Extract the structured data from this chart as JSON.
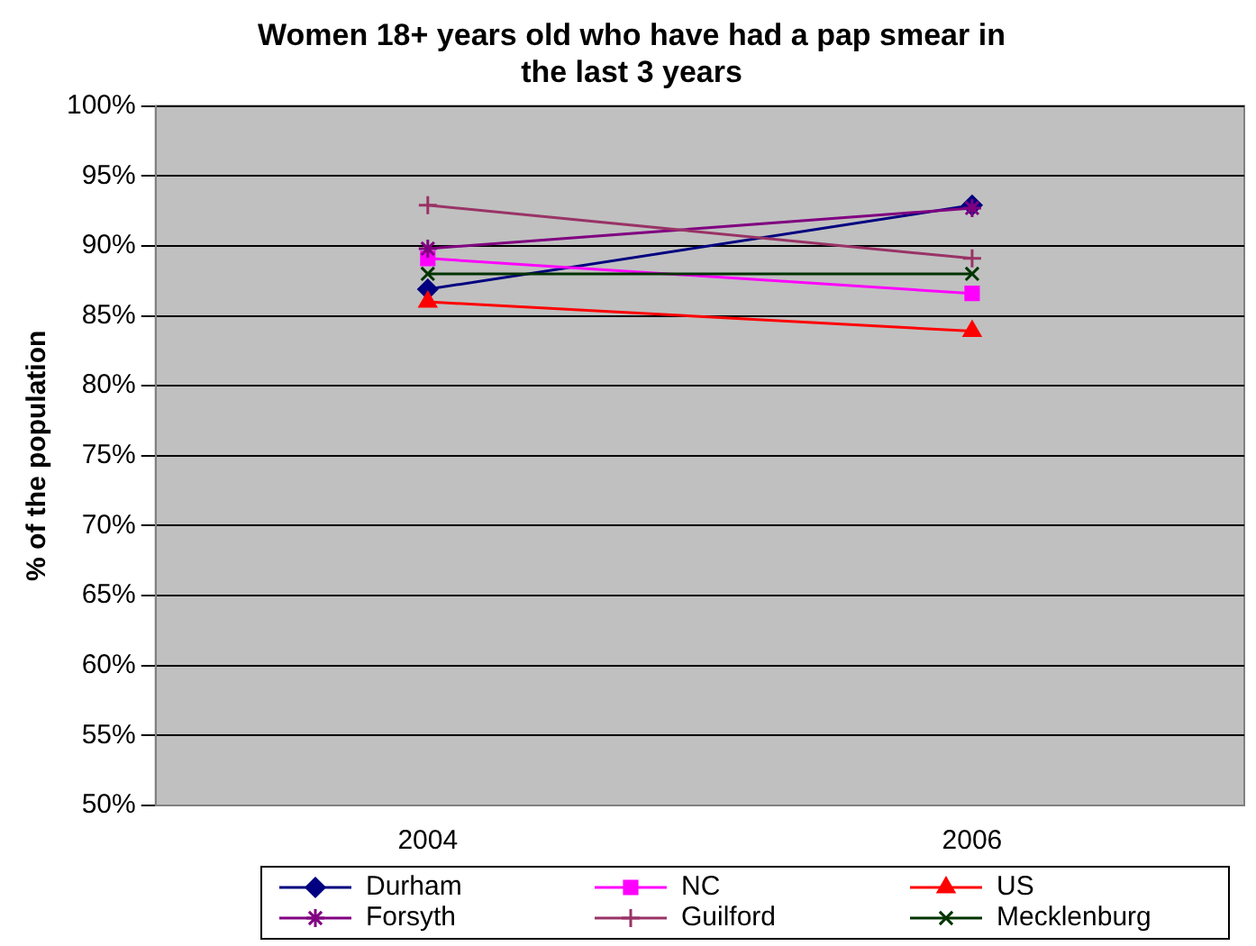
{
  "chart_data": {
    "type": "line",
    "title": "Women 18+ years old who have had a pap smear in the last 3 years",
    "ylabel": "% of the population",
    "categories": [
      "2004",
      "2006"
    ],
    "series": [
      {
        "name": "Durham",
        "color": "#000080",
        "marker": "diamond",
        "values": [
          86.9,
          92.9
        ]
      },
      {
        "name": "NC",
        "color": "#ff00ff",
        "marker": "square",
        "values": [
          89.1,
          86.6
        ]
      },
      {
        "name": "US",
        "color": "#ff0000",
        "marker": "triangle",
        "values": [
          86.0,
          83.9
        ]
      },
      {
        "name": "Forsyth",
        "color": "#800080",
        "marker": "cross",
        "values": [
          89.8,
          92.7
        ]
      },
      {
        "name": "Guilford",
        "color": "#993366",
        "marker": "cross",
        "values": [
          92.9,
          89.1
        ]
      },
      {
        "name": "Mecklenburg",
        "color": "#003300",
        "marker": "cross",
        "values": [
          88.0,
          88.0
        ]
      }
    ],
    "ylim": [
      50,
      100
    ],
    "yticks": [
      {
        "value": 50,
        "label": "50%"
      },
      {
        "value": 55,
        "label": "55%"
      },
      {
        "value": 60,
        "label": "60%"
      },
      {
        "value": 65,
        "label": "65%"
      },
      {
        "value": 70,
        "label": "70%"
      },
      {
        "value": 75,
        "label": "75%"
      },
      {
        "value": 80,
        "label": "80%"
      },
      {
        "value": 85,
        "label": "85%"
      },
      {
        "value": 90,
        "label": "90%"
      },
      {
        "value": 95,
        "label": "95%"
      },
      {
        "value": 100,
        "label": "100%"
      }
    ],
    "grid": "y",
    "legend": "bottom"
  }
}
